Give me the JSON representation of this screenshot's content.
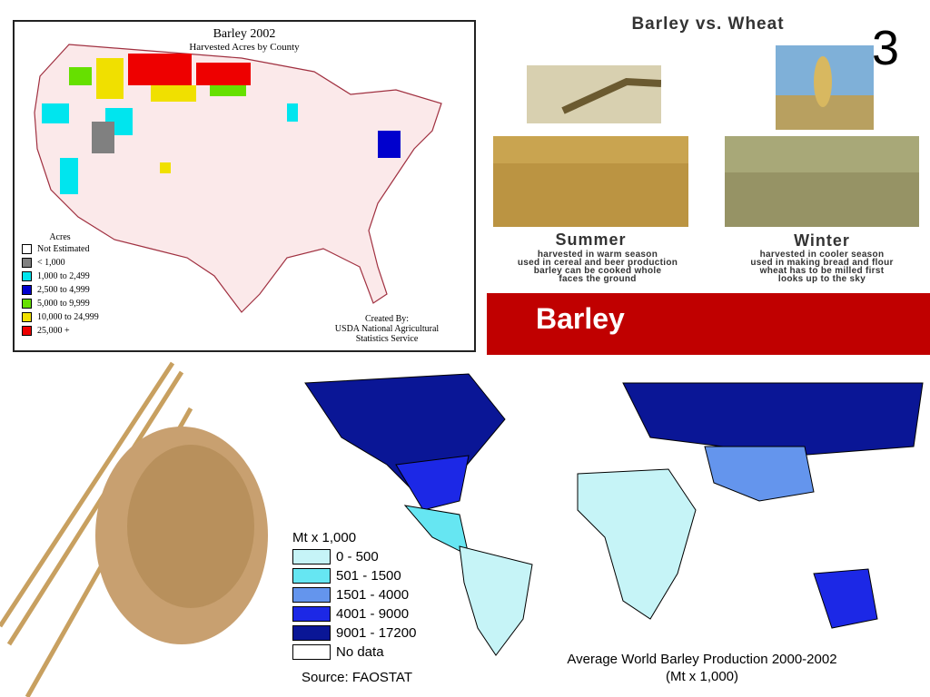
{
  "us_map": {
    "title": "Barley 2002",
    "subtitle": "Harvested Acres by County",
    "legend_title": "Acres",
    "legend": [
      {
        "label": "Not Estimated",
        "color": "#ffffff"
      },
      {
        "label": "< 1,000",
        "color": "#808080"
      },
      {
        "label": "1,000 to 2,499",
        "color": "#00e5ee"
      },
      {
        "label": "2,500 to 4,999",
        "color": "#0000cd"
      },
      {
        "label": "5,000 to 9,999",
        "color": "#66e000"
      },
      {
        "label": "10,000 to 24,999",
        "color": "#f0e000"
      },
      {
        "label": "25,000 +",
        "color": "#ee0000"
      }
    ],
    "credit": [
      "Created By:",
      "USDA National Agricultural",
      "Statistics Service"
    ]
  },
  "comparison": {
    "title": "Barley vs. Wheat",
    "slide_number": "3",
    "summer": {
      "heading": "Summer",
      "lines": [
        "harvested in warm season",
        "used in cereal and beer production",
        "barley can be cooked whole",
        "faces the ground"
      ]
    },
    "winter": {
      "heading": "Winter",
      "lines": [
        "harvested in cooler season",
        "used in making bread and flour",
        "wheat has to be milled first",
        "looks up to the sky"
      ]
    }
  },
  "banner": {
    "title": "Barley"
  },
  "world_map": {
    "legend_title": "Mt x 1,000",
    "legend": [
      {
        "label": "0 - 500",
        "color": "#c6f4f7"
      },
      {
        "label": "501 - 1500",
        "color": "#66e6f2"
      },
      {
        "label": "1501 - 4000",
        "color": "#6495ed"
      },
      {
        "label": "4001 - 9000",
        "color": "#1c28e6"
      },
      {
        "label": "9001 - 17200",
        "color": "#0a1696"
      },
      {
        "label": "No data",
        "color": "#ffffff"
      }
    ],
    "source": "Source: FAOSTAT",
    "caption": [
      "Average World Barley Production  2000-2002",
      "(Mt x 1,000)"
    ]
  }
}
